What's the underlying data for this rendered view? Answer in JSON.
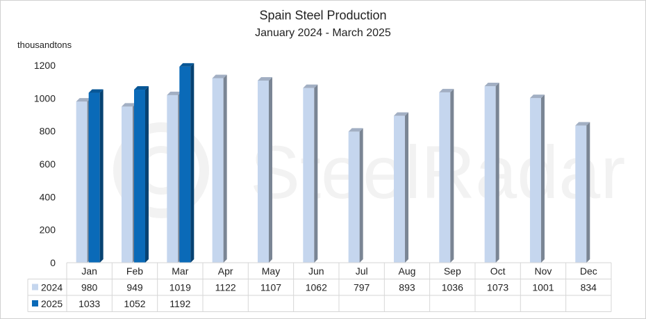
{
  "chart_data": {
    "type": "bar",
    "title": "Spain Steel Production",
    "subtitle": "January 2024 - March 2025",
    "ylabel": "thousandtons",
    "ylim": [
      0,
      1200
    ],
    "yticks": [
      0,
      200,
      400,
      600,
      800,
      1000,
      1200
    ],
    "categories": [
      "Jan",
      "Feb",
      "Mar",
      "Apr",
      "May",
      "Jun",
      "Jul",
      "Aug",
      "Sep",
      "Oct",
      "Nov",
      "Dec"
    ],
    "series": [
      {
        "name": "2024",
        "color": "#c5d6ee",
        "values": [
          980,
          949,
          1019,
          1122,
          1107,
          1062,
          797,
          893,
          1036,
          1073,
          1001,
          834
        ]
      },
      {
        "name": "2025",
        "color": "#0a6ab8",
        "values": [
          1033,
          1052,
          1192,
          null,
          null,
          null,
          null,
          null,
          null,
          null,
          null,
          null
        ]
      }
    ],
    "grid": false,
    "legend": "data-table",
    "watermark": "SteelRadar"
  }
}
